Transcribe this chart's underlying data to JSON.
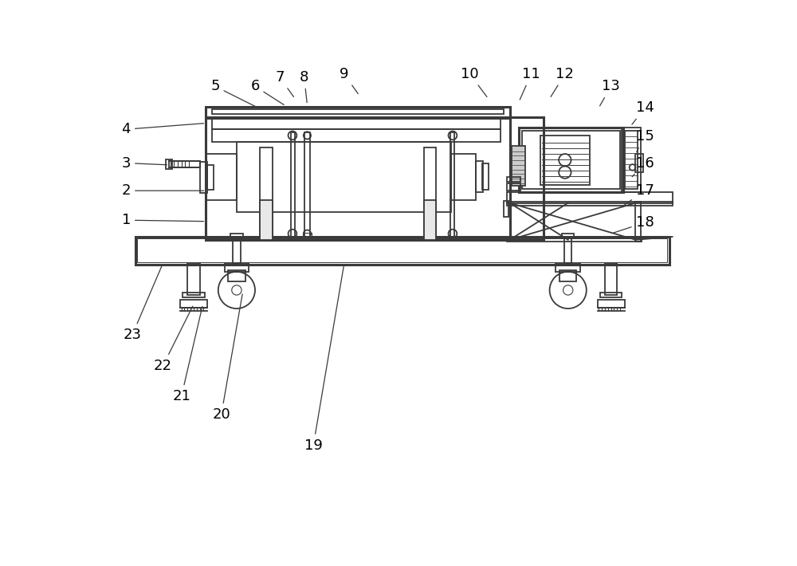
{
  "bg_color": "#ffffff",
  "lc": "#3a3a3a",
  "lw": 1.3,
  "tlw": 2.2,
  "fig_width": 10.0,
  "fig_height": 7.1,
  "label_fontsize": 13
}
